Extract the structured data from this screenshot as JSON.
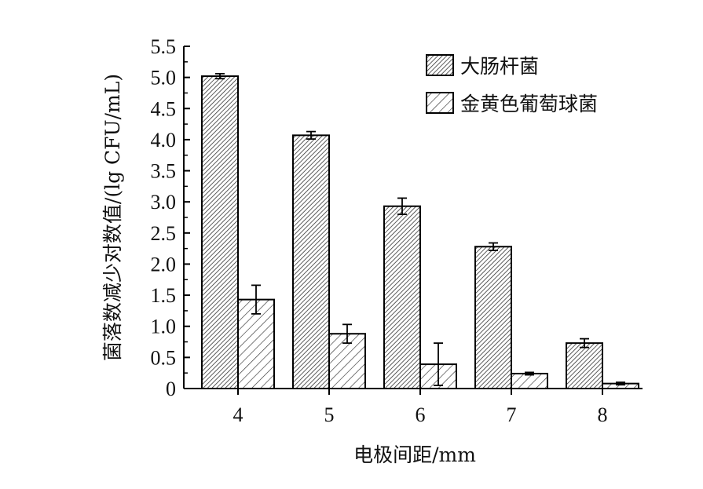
{
  "chart_data": {
    "type": "bar",
    "title": "",
    "xlabel": "电极间距/mm",
    "ylabel": "菌落数减少对数值/(lg CFU/mL)",
    "categories": [
      "4",
      "5",
      "6",
      "7",
      "8"
    ],
    "ylim": [
      0,
      5.5
    ],
    "yticks": [
      "0",
      "0.5",
      "1.0",
      "1.5",
      "2.0",
      "2.5",
      "3.0",
      "3.5",
      "4.0",
      "4.5",
      "5.0",
      "5.5"
    ],
    "grid": false,
    "legend_position": "top-right",
    "series": [
      {
        "name": "大肠杆菌",
        "values": [
          5.02,
          4.07,
          2.93,
          2.28,
          0.73
        ],
        "errors": [
          0.04,
          0.06,
          0.13,
          0.06,
          0.07
        ],
        "hatch": "dense-diagonal"
      },
      {
        "name": "金黄色葡萄球菌",
        "values": [
          1.43,
          0.88,
          0.39,
          0.24,
          0.08
        ],
        "errors": [
          0.23,
          0.15,
          0.34,
          0.02,
          0.02
        ],
        "hatch": "sparse-diagonal"
      }
    ]
  }
}
